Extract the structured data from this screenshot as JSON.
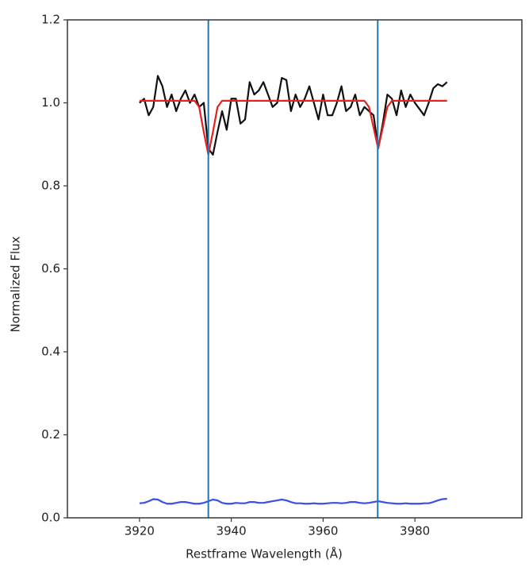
{
  "chart_data": {
    "type": "line",
    "xlabel": "Restframe Wavelength (Å)",
    "ylabel": "Normalized Flux",
    "x": [
      3920,
      3921,
      3922,
      3923,
      3924,
      3925,
      3926,
      3927,
      3928,
      3929,
      3930,
      3931,
      3932,
      3933,
      3934,
      3935,
      3936,
      3937,
      3938,
      3939,
      3940,
      3941,
      3942,
      3943,
      3944,
      3945,
      3946,
      3947,
      3948,
      3949,
      3950,
      3951,
      3952,
      3953,
      3954,
      3955,
      3956,
      3957,
      3958,
      3959,
      3960,
      3961,
      3962,
      3963,
      3964,
      3965,
      3966,
      3967,
      3968,
      3969,
      3970,
      3971,
      3972,
      3973,
      3974,
      3975,
      3976,
      3977,
      3978,
      3979,
      3980,
      3981,
      3982,
      3983,
      3984,
      3985,
      3986,
      3987
    ],
    "series": [
      {
        "color": "#111111",
        "values": [
          1.0,
          1.01,
          0.97,
          0.99,
          1.065,
          1.04,
          0.99,
          1.02,
          0.98,
          1.01,
          1.03,
          1.0,
          1.02,
          0.99,
          1.0,
          0.89,
          0.875,
          0.93,
          0.98,
          0.935,
          1.01,
          1.01,
          0.95,
          0.96,
          1.05,
          1.02,
          1.03,
          1.05,
          1.02,
          0.99,
          1.0,
          1.06,
          1.055,
          0.98,
          1.02,
          0.99,
          1.01,
          1.04,
          1.0,
          0.96,
          1.02,
          0.97,
          0.97,
          1.0,
          1.04,
          0.98,
          0.99,
          1.02,
          0.97,
          0.99,
          0.98,
          0.97,
          0.89,
          0.95,
          1.02,
          1.01,
          0.97,
          1.03,
          0.99,
          1.02,
          1.0,
          0.985,
          0.97,
          1.0,
          1.035,
          1.045,
          1.04,
          1.05
        ]
      },
      {
        "color": "#e8201c",
        "values": [
          1.005,
          1.005,
          1.005,
          1.005,
          1.005,
          1.005,
          1.005,
          1.005,
          1.005,
          1.005,
          1.005,
          1.005,
          1.005,
          0.99,
          0.93,
          0.875,
          0.93,
          0.99,
          1.005,
          1.005,
          1.005,
          1.005,
          1.005,
          1.005,
          1.005,
          1.005,
          1.005,
          1.005,
          1.005,
          1.005,
          1.005,
          1.005,
          1.005,
          1.005,
          1.005,
          1.005,
          1.005,
          1.005,
          1.005,
          1.005,
          1.005,
          1.005,
          1.005,
          1.005,
          1.005,
          1.005,
          1.005,
          1.005,
          1.005,
          1.005,
          0.99,
          0.94,
          0.89,
          0.94,
          0.99,
          1.005,
          1.005,
          1.005,
          1.005,
          1.005,
          1.005,
          1.005,
          1.005,
          1.005,
          1.005,
          1.005,
          1.005,
          1.005
        ]
      },
      {
        "color": "#3a4ee8",
        "values": [
          0.035,
          0.036,
          0.04,
          0.045,
          0.044,
          0.038,
          0.034,
          0.034,
          0.036,
          0.038,
          0.038,
          0.036,
          0.034,
          0.034,
          0.036,
          0.04,
          0.044,
          0.042,
          0.036,
          0.034,
          0.034,
          0.036,
          0.035,
          0.035,
          0.038,
          0.038,
          0.036,
          0.036,
          0.038,
          0.04,
          0.042,
          0.044,
          0.042,
          0.038,
          0.035,
          0.035,
          0.034,
          0.034,
          0.035,
          0.034,
          0.034,
          0.035,
          0.036,
          0.036,
          0.035,
          0.036,
          0.038,
          0.038,
          0.036,
          0.035,
          0.036,
          0.038,
          0.04,
          0.038,
          0.036,
          0.035,
          0.034,
          0.034,
          0.035,
          0.034,
          0.034,
          0.034,
          0.035,
          0.035,
          0.038,
          0.042,
          0.045,
          0.046
        ]
      }
    ],
    "vlines": [
      3935.0,
      3971.9
    ],
    "vline_color": "#1f77b4",
    "xlim": [
      3904.3,
      4003.3
    ],
    "xticks": [
      3920,
      3940,
      3960,
      3980
    ],
    "ylim": [
      0,
      1.2
    ],
    "yticks": [
      {
        "value": 0,
        "label": "0.0"
      },
      0.2,
      0.4,
      0.6,
      0.8,
      {
        "value": 1,
        "label": "1.0"
      },
      1.2
    ]
  }
}
